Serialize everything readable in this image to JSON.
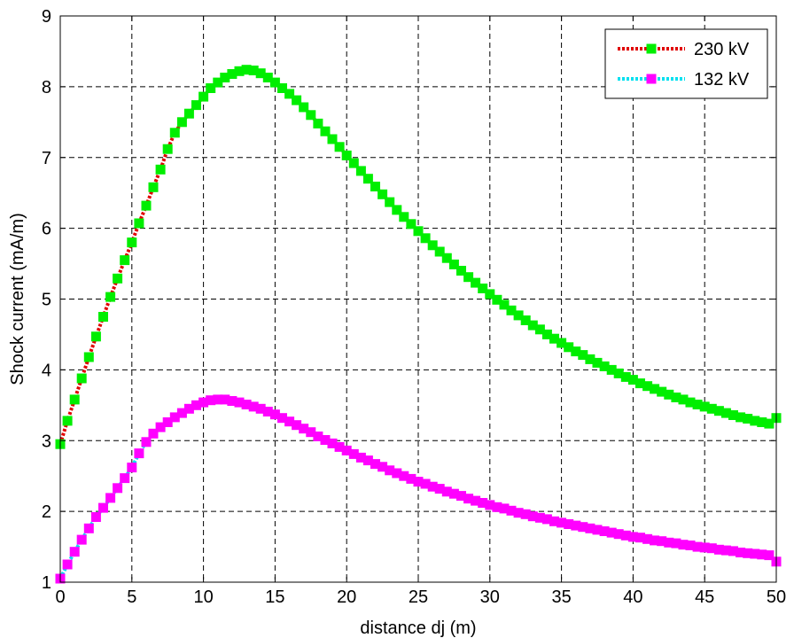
{
  "chart_data": {
    "type": "line",
    "title": "",
    "xlabel": "distance dj (m)",
    "ylabel": "Shock current (mA/m)",
    "xlim": [
      0,
      50
    ],
    "ylim": [
      1,
      9
    ],
    "xticks": [
      0,
      5,
      10,
      15,
      20,
      25,
      30,
      35,
      40,
      45,
      50
    ],
    "yticks": [
      1,
      2,
      3,
      4,
      5,
      6,
      7,
      8,
      9
    ],
    "grid": true,
    "legend_position": "top-right",
    "series": [
      {
        "name": "230 kV",
        "line_color": "#e00000",
        "marker_color": "#00ee00",
        "x": [
          0,
          0.5,
          1,
          1.5,
          2,
          2.5,
          3,
          3.5,
          4,
          4.5,
          5,
          5.5,
          6,
          6.5,
          7,
          7.5,
          8,
          8.5,
          9,
          9.5,
          10,
          10.5,
          11,
          11.5,
          12,
          12.5,
          13,
          13.5,
          14,
          14.5,
          15,
          15.5,
          16,
          16.5,
          17,
          17.5,
          18,
          18.5,
          19,
          19.5,
          20,
          20.5,
          21,
          21.5,
          22,
          22.5,
          23,
          23.5,
          24,
          24.5,
          25,
          25.5,
          26,
          26.5,
          27,
          27.5,
          28,
          28.5,
          29,
          29.5,
          30,
          30.5,
          31,
          31.5,
          32,
          32.5,
          33,
          33.5,
          34,
          34.5,
          35,
          35.5,
          36,
          36.5,
          37,
          37.5,
          38,
          38.5,
          39,
          39.5,
          40,
          40.5,
          41,
          41.5,
          42,
          42.5,
          43,
          43.5,
          44,
          44.5,
          45,
          45.5,
          46,
          46.5,
          47,
          47.5,
          48,
          48.5,
          49,
          49.5,
          50
        ],
        "values": [
          2.95,
          3.28,
          3.58,
          3.88,
          4.18,
          4.47,
          4.75,
          5.03,
          5.29,
          5.55,
          5.8,
          6.07,
          6.32,
          6.58,
          6.83,
          7.12,
          7.35,
          7.5,
          7.62,
          7.74,
          7.86,
          7.98,
          8.06,
          8.13,
          8.18,
          8.22,
          8.24,
          8.23,
          8.19,
          8.13,
          8.06,
          7.98,
          7.9,
          7.81,
          7.71,
          7.6,
          7.48,
          7.37,
          7.26,
          7.15,
          7.03,
          6.92,
          6.81,
          6.7,
          6.59,
          6.48,
          6.37,
          6.26,
          6.16,
          6.06,
          5.96,
          5.86,
          5.76,
          5.67,
          5.58,
          5.49,
          5.4,
          5.31,
          5.23,
          5.15,
          5.07,
          4.99,
          4.92,
          4.84,
          4.77,
          4.7,
          4.63,
          4.57,
          4.5,
          4.44,
          4.38,
          4.32,
          4.26,
          4.21,
          4.15,
          4.1,
          4.05,
          4.0,
          3.95,
          3.9,
          3.86,
          3.81,
          3.77,
          3.73,
          3.69,
          3.65,
          3.61,
          3.58,
          3.54,
          3.51,
          3.48,
          3.45,
          3.42,
          3.39,
          3.36,
          3.33,
          3.31,
          3.28,
          3.26,
          3.24,
          3.32
        ]
      },
      {
        "name": "132 kV",
        "line_color": "#00e0f0",
        "marker_color": "#ff00ff",
        "x": [
          0,
          0.5,
          1,
          1.5,
          2,
          2.5,
          3,
          3.5,
          4,
          4.5,
          5,
          5.5,
          6,
          6.5,
          7,
          7.5,
          8,
          8.5,
          9,
          9.5,
          10,
          10.5,
          11,
          11.5,
          12,
          12.5,
          13,
          13.5,
          14,
          14.5,
          15,
          15.5,
          16,
          16.5,
          17,
          17.5,
          18,
          18.5,
          19,
          19.5,
          20,
          20.5,
          21,
          21.5,
          22,
          22.5,
          23,
          23.5,
          24,
          24.5,
          25,
          25.5,
          26,
          26.5,
          27,
          27.5,
          28,
          28.5,
          29,
          29.5,
          30,
          30.5,
          31,
          31.5,
          32,
          32.5,
          33,
          33.5,
          34,
          34.5,
          35,
          35.5,
          36,
          36.5,
          37,
          37.5,
          38,
          38.5,
          39,
          39.5,
          40,
          40.5,
          41,
          41.5,
          42,
          42.5,
          43,
          43.5,
          44,
          44.5,
          45,
          45.5,
          46,
          46.5,
          47,
          47.5,
          48,
          48.5,
          49,
          49.5,
          50
        ],
        "values": [
          1.05,
          1.25,
          1.43,
          1.6,
          1.76,
          1.92,
          2.05,
          2.19,
          2.33,
          2.47,
          2.62,
          2.82,
          2.98,
          3.1,
          3.19,
          3.26,
          3.33,
          3.39,
          3.45,
          3.5,
          3.54,
          3.57,
          3.58,
          3.58,
          3.56,
          3.54,
          3.51,
          3.48,
          3.45,
          3.41,
          3.37,
          3.32,
          3.27,
          3.22,
          3.17,
          3.12,
          3.06,
          3.01,
          2.96,
          2.91,
          2.86,
          2.81,
          2.76,
          2.72,
          2.67,
          2.63,
          2.58,
          2.54,
          2.5,
          2.46,
          2.42,
          2.39,
          2.35,
          2.32,
          2.28,
          2.25,
          2.22,
          2.18,
          2.15,
          2.12,
          2.09,
          2.06,
          2.04,
          2.01,
          1.98,
          1.96,
          1.93,
          1.91,
          1.89,
          1.86,
          1.84,
          1.82,
          1.8,
          1.78,
          1.76,
          1.74,
          1.72,
          1.7,
          1.68,
          1.66,
          1.64,
          1.63,
          1.61,
          1.59,
          1.58,
          1.56,
          1.55,
          1.53,
          1.52,
          1.5,
          1.49,
          1.48,
          1.46,
          1.45,
          1.44,
          1.42,
          1.41,
          1.4,
          1.39,
          1.38,
          1.29
        ]
      }
    ]
  }
}
